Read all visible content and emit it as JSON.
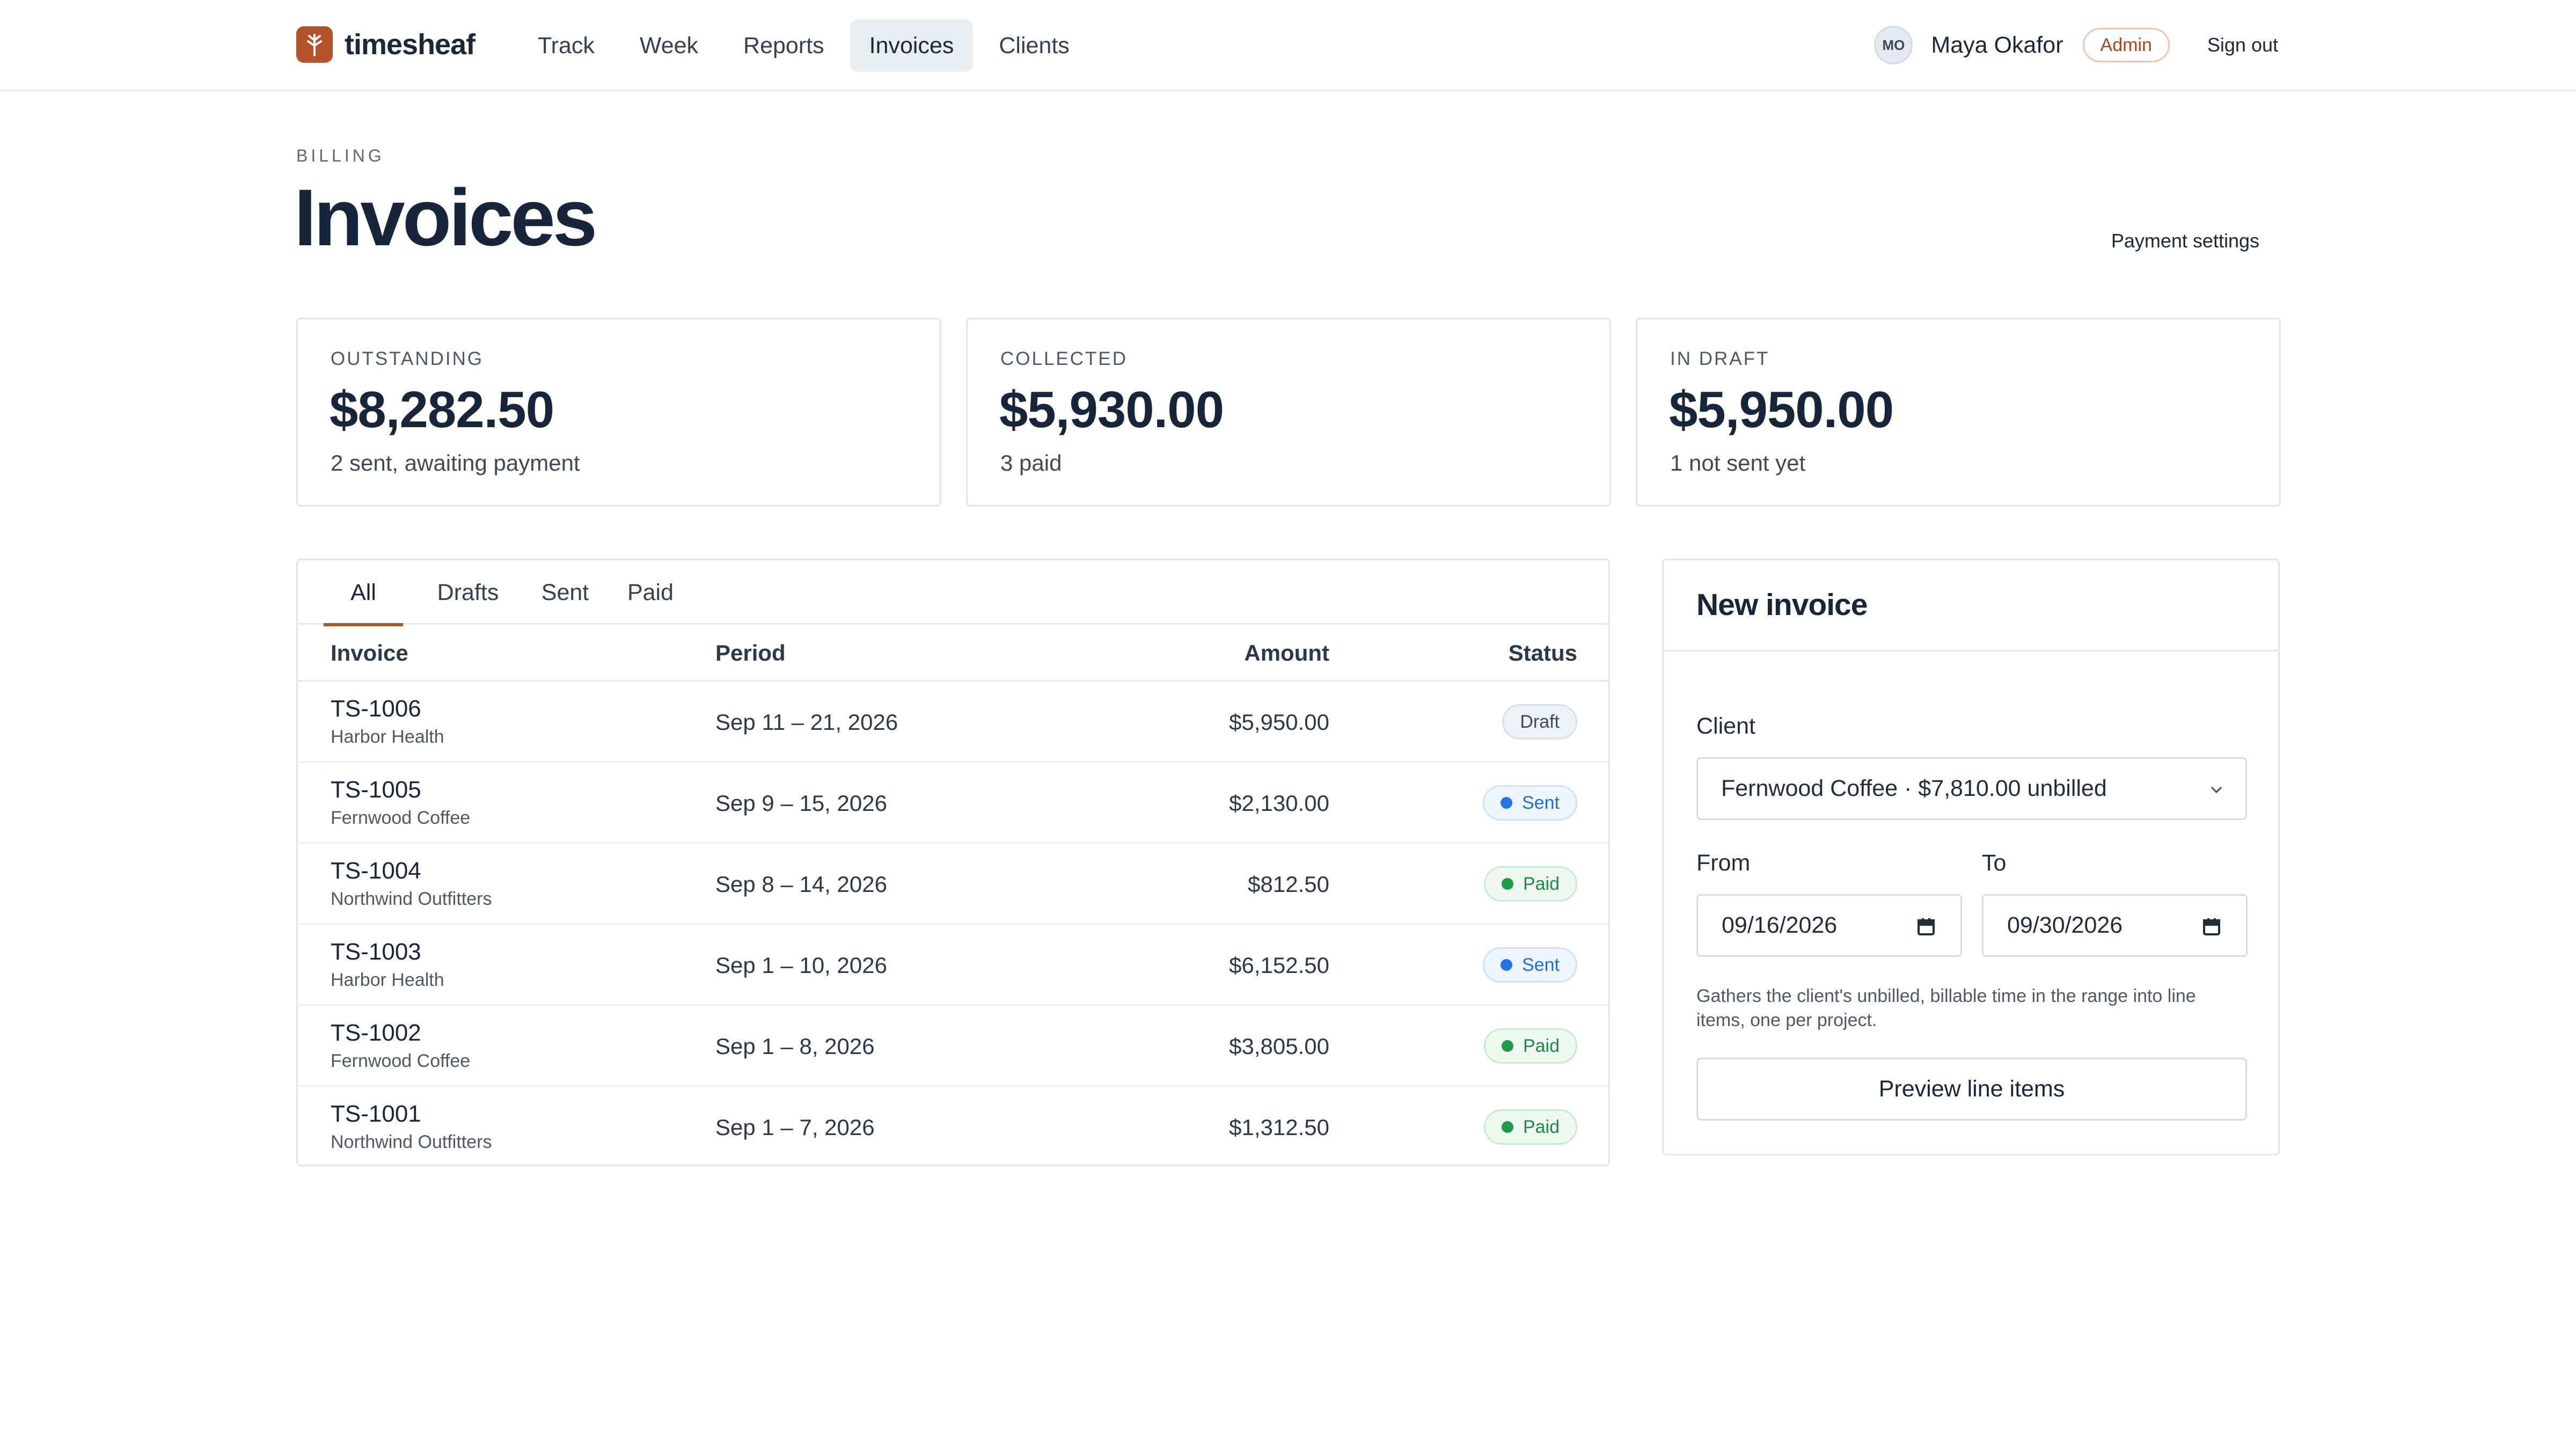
{
  "app": {
    "name": "timesheaf",
    "brand_color": "#b4532a"
  },
  "nav": {
    "items": [
      {
        "label": "Track",
        "active": false
      },
      {
        "label": "Week",
        "active": false
      },
      {
        "label": "Reports",
        "active": false
      },
      {
        "label": "Invoices",
        "active": true
      },
      {
        "label": "Clients",
        "active": false
      }
    ]
  },
  "user": {
    "initials": "MO",
    "name": "Maya Okafor",
    "role": "Admin",
    "signout_label": "Sign out"
  },
  "header": {
    "eyebrow": "BILLING",
    "title": "Invoices",
    "payment_settings_label": "Payment settings"
  },
  "stats": [
    {
      "label": "OUTSTANDING",
      "value": "$8,282.50",
      "sub": "2 sent, awaiting payment"
    },
    {
      "label": "COLLECTED",
      "value": "$5,930.00",
      "sub": "3 paid"
    },
    {
      "label": "IN DRAFT",
      "value": "$5,950.00",
      "sub": "1 not sent yet"
    }
  ],
  "tabs": [
    {
      "label": "All",
      "active": true
    },
    {
      "label": "Drafts",
      "active": false
    },
    {
      "label": "Sent",
      "active": false
    },
    {
      "label": "Paid",
      "active": false
    }
  ],
  "table": {
    "columns": {
      "invoice": "Invoice",
      "period": "Period",
      "amount": "Amount",
      "status": "Status"
    },
    "rows": [
      {
        "id": "TS-1006",
        "client": "Harbor Health",
        "period": "Sep 11 – 21, 2026",
        "amount": "$5,950.00",
        "status": "Draft",
        "status_kind": "draft"
      },
      {
        "id": "TS-1005",
        "client": "Fernwood Coffee",
        "period": "Sep 9 – 15, 2026",
        "amount": "$2,130.00",
        "status": "Sent",
        "status_kind": "sent"
      },
      {
        "id": "TS-1004",
        "client": "Northwind Outfitters",
        "period": "Sep 8 – 14, 2026",
        "amount": "$812.50",
        "status": "Paid",
        "status_kind": "paid"
      },
      {
        "id": "TS-1003",
        "client": "Harbor Health",
        "period": "Sep 1 – 10, 2026",
        "amount": "$6,152.50",
        "status": "Sent",
        "status_kind": "sent"
      },
      {
        "id": "TS-1002",
        "client": "Fernwood Coffee",
        "period": "Sep 1 – 8, 2026",
        "amount": "$3,805.00",
        "status": "Paid",
        "status_kind": "paid"
      },
      {
        "id": "TS-1001",
        "client": "Northwind Outfitters",
        "period": "Sep 1 – 7, 2026",
        "amount": "$1,312.50",
        "status": "Paid",
        "status_kind": "paid"
      }
    ]
  },
  "new_invoice": {
    "title": "New invoice",
    "client_label": "Client",
    "client_value": "Fernwood Coffee · $7,810.00 unbilled",
    "from_label": "From",
    "from_value": "09/16/2026",
    "to_label": "To",
    "to_value": "09/30/2026",
    "hint": "Gathers the client's unbilled, billable time in the range into line items, one per project.",
    "button_label": "Preview line items"
  },
  "colors": {
    "accent": "#b4532a",
    "sent": "#1f75e8",
    "paid": "#1f9a47"
  }
}
